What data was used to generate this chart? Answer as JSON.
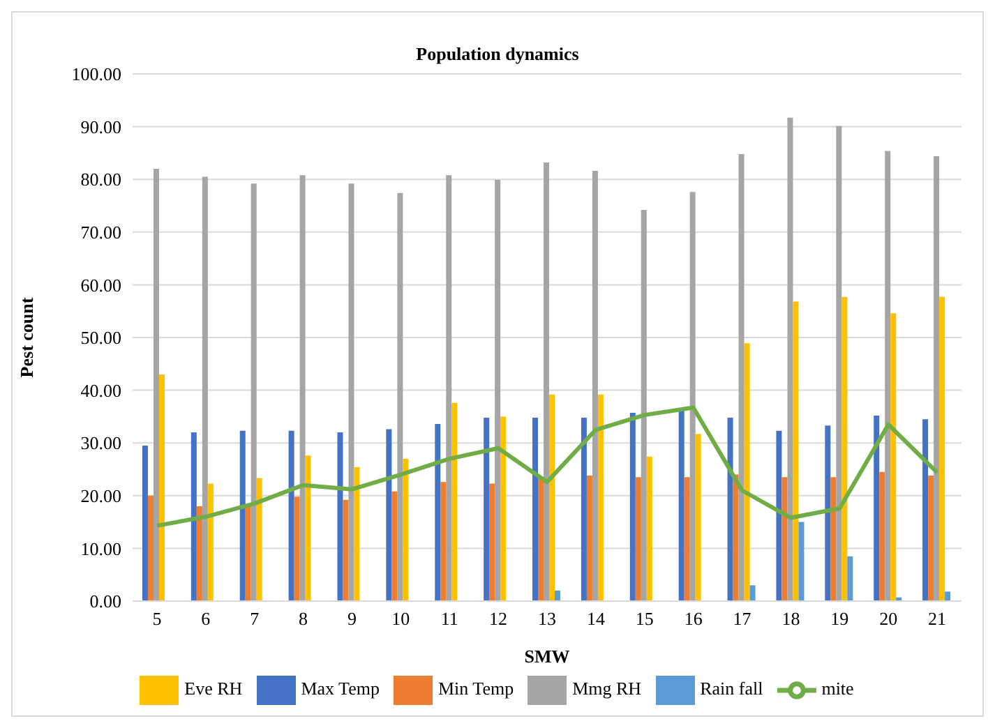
{
  "chart_data": {
    "type": "bar",
    "title": "Population dynamics",
    "xlabel": "SMW",
    "ylabel": "Pest count",
    "categories": [
      "5",
      "6",
      "7",
      "8",
      "9",
      "10",
      "11",
      "12",
      "13",
      "14",
      "15",
      "16",
      "17",
      "18",
      "19",
      "20",
      "21"
    ],
    "series": [
      {
        "name": "Max Temp",
        "color": "#4472c4",
        "values": [
          29.5,
          32,
          32.3,
          32.3,
          32,
          32.6,
          33.6,
          34.8,
          34.8,
          34.8,
          35.7,
          36.2,
          34.8,
          32.3,
          33.3,
          35.2,
          34.5
        ]
      },
      {
        "name": "Min Temp",
        "color": "#ed7d31",
        "values": [
          20,
          18,
          18,
          19.8,
          19.2,
          20.8,
          22.6,
          22.3,
          23.3,
          23.8,
          23.5,
          23.5,
          24,
          23.5,
          23.5,
          24.5,
          23.8
        ]
      },
      {
        "name": "Mmg RH",
        "color": "#a5a5a5",
        "values": [
          82,
          80.5,
          79.2,
          80.8,
          79.2,
          77.4,
          80.8,
          79.9,
          83.2,
          81.6,
          74.2,
          77.6,
          84.8,
          91.7,
          90.1,
          85.4,
          84.4
        ]
      },
      {
        "name": "Eve RH",
        "color": "#ffc000",
        "values": [
          43,
          22.3,
          23.3,
          27.6,
          25.4,
          27,
          37.6,
          35,
          39.2,
          39.2,
          27.4,
          31.7,
          48.9,
          56.8,
          57.7,
          54.6,
          57.7
        ]
      },
      {
        "name": "Rain fall",
        "color": "#5b9bd5",
        "values": [
          0,
          0,
          0,
          0,
          0,
          0,
          0,
          0,
          2,
          0,
          0,
          0,
          3,
          15,
          8.5,
          0.7,
          1.8
        ]
      },
      {
        "name": "mite",
        "type": "line",
        "color": "#70ad47",
        "values": [
          14.3,
          16,
          18.5,
          22,
          21.2,
          24,
          27,
          29,
          22.6,
          32.5,
          35.3,
          36.7,
          21,
          15.8,
          17.6,
          33.5,
          24.4
        ]
      }
    ],
    "ylim": [
      0,
      100
    ],
    "yticks": [
      {
        "value": 0,
        "label": "0.00"
      },
      {
        "value": 10,
        "label": "10.00"
      },
      {
        "value": 20,
        "label": "20.00"
      },
      {
        "value": 30,
        "label": "30.00"
      },
      {
        "value": 40,
        "label": "40.00"
      },
      {
        "value": 50,
        "label": "50.00"
      },
      {
        "value": 60,
        "label": "60.00"
      },
      {
        "value": 70,
        "label": "70.00"
      },
      {
        "value": 80,
        "label": "80.00"
      },
      {
        "value": 90,
        "label": "90.00"
      },
      {
        "value": 100,
        "label": "100.00"
      }
    ],
    "grid": "y",
    "legend": "bottom",
    "marker": "none"
  }
}
